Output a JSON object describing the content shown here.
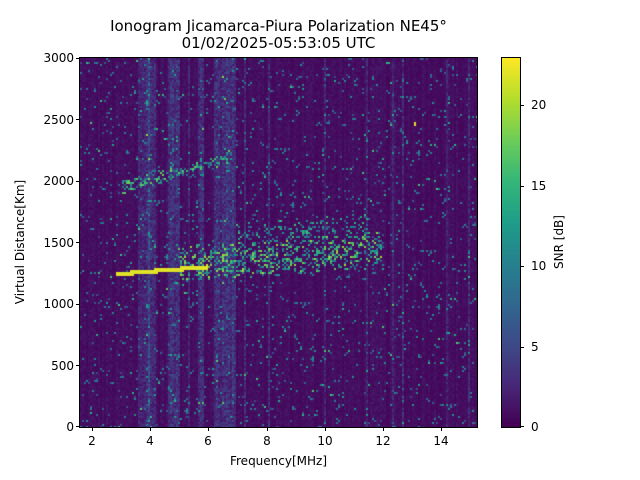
{
  "chart_data": {
    "type": "heatmap",
    "title": "Ionogram Jicamarca-Piura Polarization NE45°",
    "subtitle": "01/02/2025-05:53:05 UTC",
    "xlabel": "Frequency[MHz]",
    "ylabel": "Virtual Distance[Km]",
    "colorbar_label": "SNR [dB]",
    "colormap": "viridis",
    "xlim": [
      1.6,
      15.25
    ],
    "ylim": [
      0,
      3000
    ],
    "clim": [
      0,
      23
    ],
    "xticks": [
      2,
      4,
      6,
      8,
      10,
      12,
      14
    ],
    "yticks": [
      0,
      500,
      1000,
      1500,
      2000,
      2500,
      3000
    ],
    "cticks": [
      0,
      5,
      10,
      15,
      20
    ],
    "grid": false,
    "features": [
      {
        "name": "primary echo trace (yellow, strong)",
        "type": "line",
        "f_start": 2.8,
        "f_end": 6.0,
        "d_start": 1250,
        "d_end": 1310,
        "snr": 22,
        "thickness_km": 35
      },
      {
        "name": "primary echo scatter cluster",
        "type": "cloud",
        "f_min": 5.0,
        "f_max": 12.0,
        "d_center_start": 1330,
        "d_center_end": 1450,
        "spread_km": 150,
        "snr_max": 20,
        "density": 0.45
      },
      {
        "name": "secondary echo upper cluster",
        "type": "cloud",
        "f_min": 7.0,
        "f_max": 11.5,
        "d_center_start": 1550,
        "d_center_end": 1650,
        "spread_km": 110,
        "snr_max": 16,
        "density": 0.2
      },
      {
        "name": "second-hop echo trace",
        "type": "cloud",
        "f_min": 3.0,
        "f_max": 6.8,
        "d_center_start": 1950,
        "d_center_end": 2200,
        "spread_km": 60,
        "snr_max": 18,
        "density": 0.45
      },
      {
        "name": "isolated bright point",
        "type": "point",
        "f": 13.1,
        "d": 2470,
        "snr": 22
      }
    ],
    "noise": {
      "floor_snr": 1.0,
      "band_interference_MHz": [
        [
          3.6,
          4.2
        ],
        [
          4.6,
          5.0
        ],
        [
          5.6,
          5.8
        ],
        [
          6.2,
          6.9
        ]
      ]
    }
  },
  "title": {
    "line1": "Ionogram Jicamarca-Piura Polarization NE45°",
    "line2": "01/02/2025-05:53:05 UTC"
  },
  "axes": {
    "xlabel": "Frequency[MHz]",
    "ylabel": "Virtual Distance[Km]",
    "xticks": [
      "2",
      "4",
      "6",
      "8",
      "10",
      "12",
      "14"
    ],
    "yticks": [
      "3000",
      "2500",
      "2000",
      "1500",
      "1000",
      "500",
      "0"
    ]
  },
  "colorbar": {
    "label": "SNR [dB]",
    "ticks": [
      "20",
      "15",
      "10",
      "5",
      "0"
    ]
  }
}
